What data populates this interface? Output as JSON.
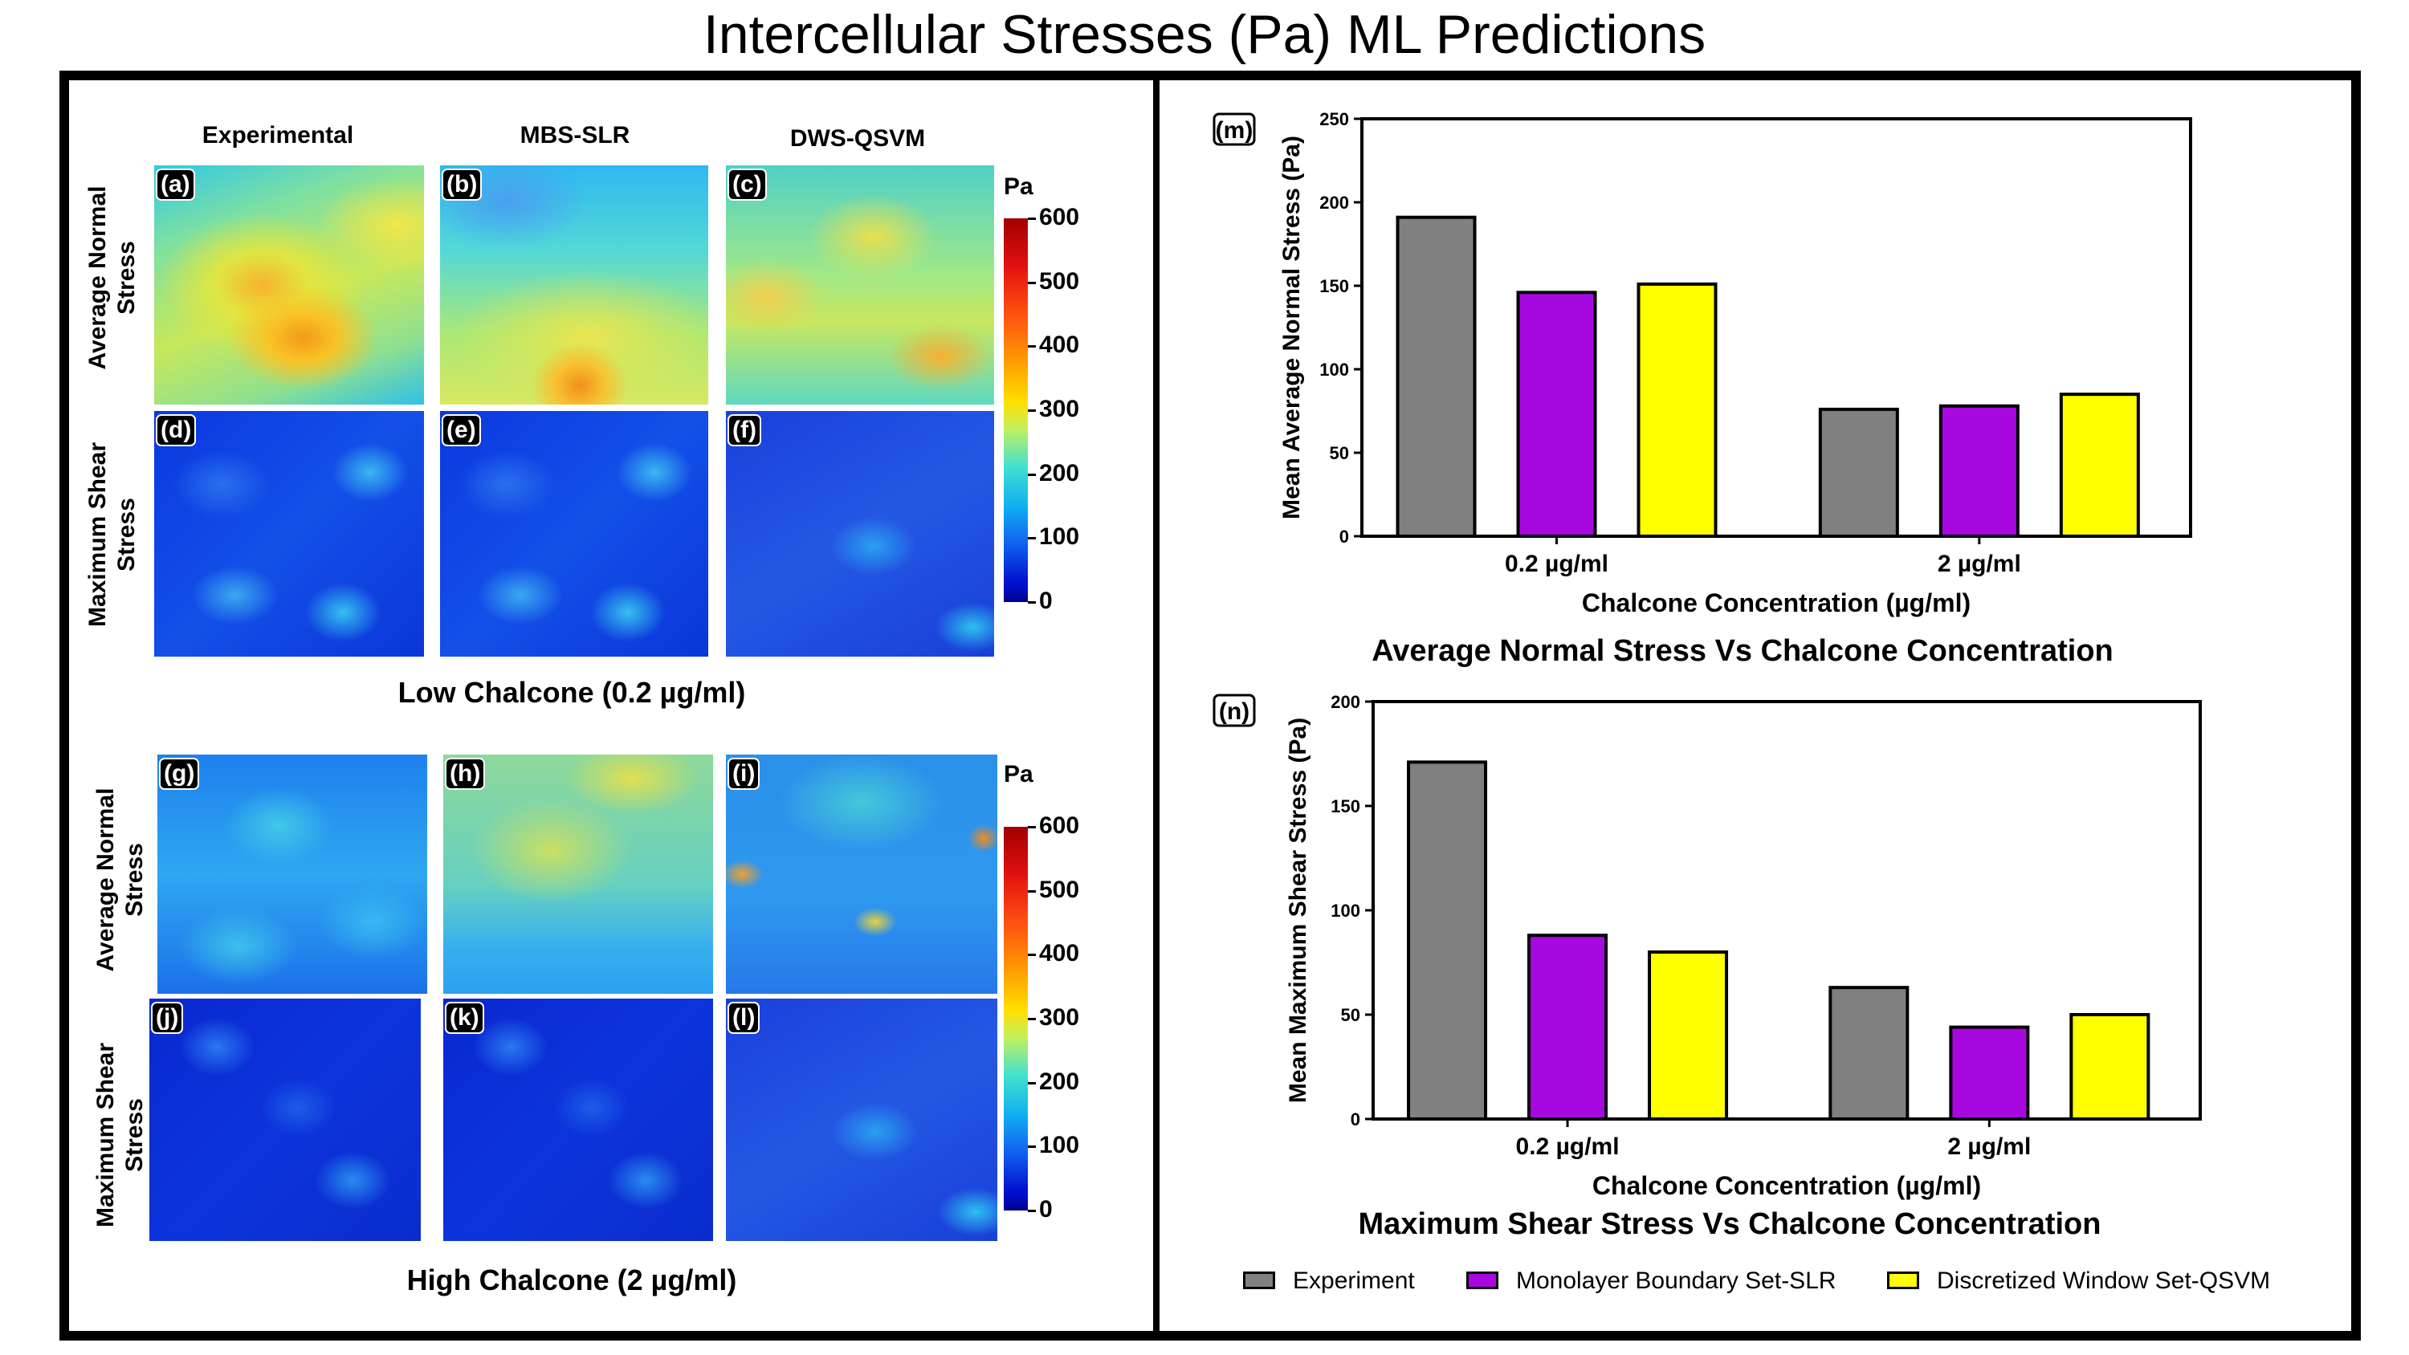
{
  "title": "Intercellular Stresses (Pa) ML Predictions",
  "columns": [
    "Experimental",
    "MBS-SLR",
    "DWS-QSVM"
  ],
  "rows": {
    "normal": [
      "Average Normal",
      "Stress"
    ],
    "shear": [
      "Maximum Shear",
      "Stress"
    ]
  },
  "panel_labels": [
    "(a)",
    "(b)",
    "(c)",
    "(d)",
    "(e)",
    "(f)",
    "(g)",
    "(h)",
    "(i)",
    "(j)",
    "(k)",
    "(l)"
  ],
  "group_captions": [
    "Low Chalcone (0.2 µg/ml)",
    "High Chalcone (2 µg/ml)"
  ],
  "colorbar": {
    "unit": "Pa",
    "ticks": [
      "600",
      "500",
      "400",
      "300",
      "200",
      "100",
      "0"
    ],
    "min": 0,
    "max": 600
  },
  "colors": {
    "experiment": "#808080",
    "slr": "#a808e0",
    "qsvm": "#ffff00",
    "jet_dark_blue": "#0000a0",
    "jet_red": "#b00000"
  },
  "chart_data": [
    {
      "type": "bar",
      "panel_label": "(m)",
      "title": "Average Normal Stress Vs Chalcone Concentration",
      "xlabel": "Chalcone Concentration (µg/ml)",
      "ylabel": "Mean Average Normal Stress (Pa)",
      "categories": [
        "0.2 µg/ml",
        "2 µg/ml"
      ],
      "ylim": [
        0,
        250
      ],
      "yticks": [
        "0",
        "50",
        "100",
        "150",
        "200",
        "250"
      ],
      "series": [
        {
          "name": "Experiment",
          "values": [
            191,
            76
          ]
        },
        {
          "name": "Monolayer Boundary Set-SLR",
          "values": [
            146,
            78
          ]
        },
        {
          "name": "Discretized Window Set-QSVM",
          "values": [
            151,
            85
          ]
        }
      ]
    },
    {
      "type": "bar",
      "panel_label": "(n)",
      "title": "Maximum Shear Stress Vs Chalcone Concentration",
      "xlabel": "Chalcone Concentration (µg/ml)",
      "ylabel": "Mean Maximum Shear  Stress (Pa)",
      "categories": [
        "0.2 µg/ml",
        "2 µg/ml"
      ],
      "ylim": [
        0,
        200
      ],
      "yticks": [
        "0",
        "50",
        "100",
        "150",
        "200"
      ],
      "series": [
        {
          "name": "Experiment",
          "values": [
            171,
            63
          ]
        },
        {
          "name": "Monolayer Boundary Set-SLR",
          "values": [
            88,
            44
          ]
        },
        {
          "name": "Discretized Window Set-QSVM",
          "values": [
            80,
            50
          ]
        }
      ]
    }
  ],
  "legend": [
    "Experiment",
    "Monolayer Boundary Set-SLR",
    "Discretized Window Set-QSVM"
  ]
}
